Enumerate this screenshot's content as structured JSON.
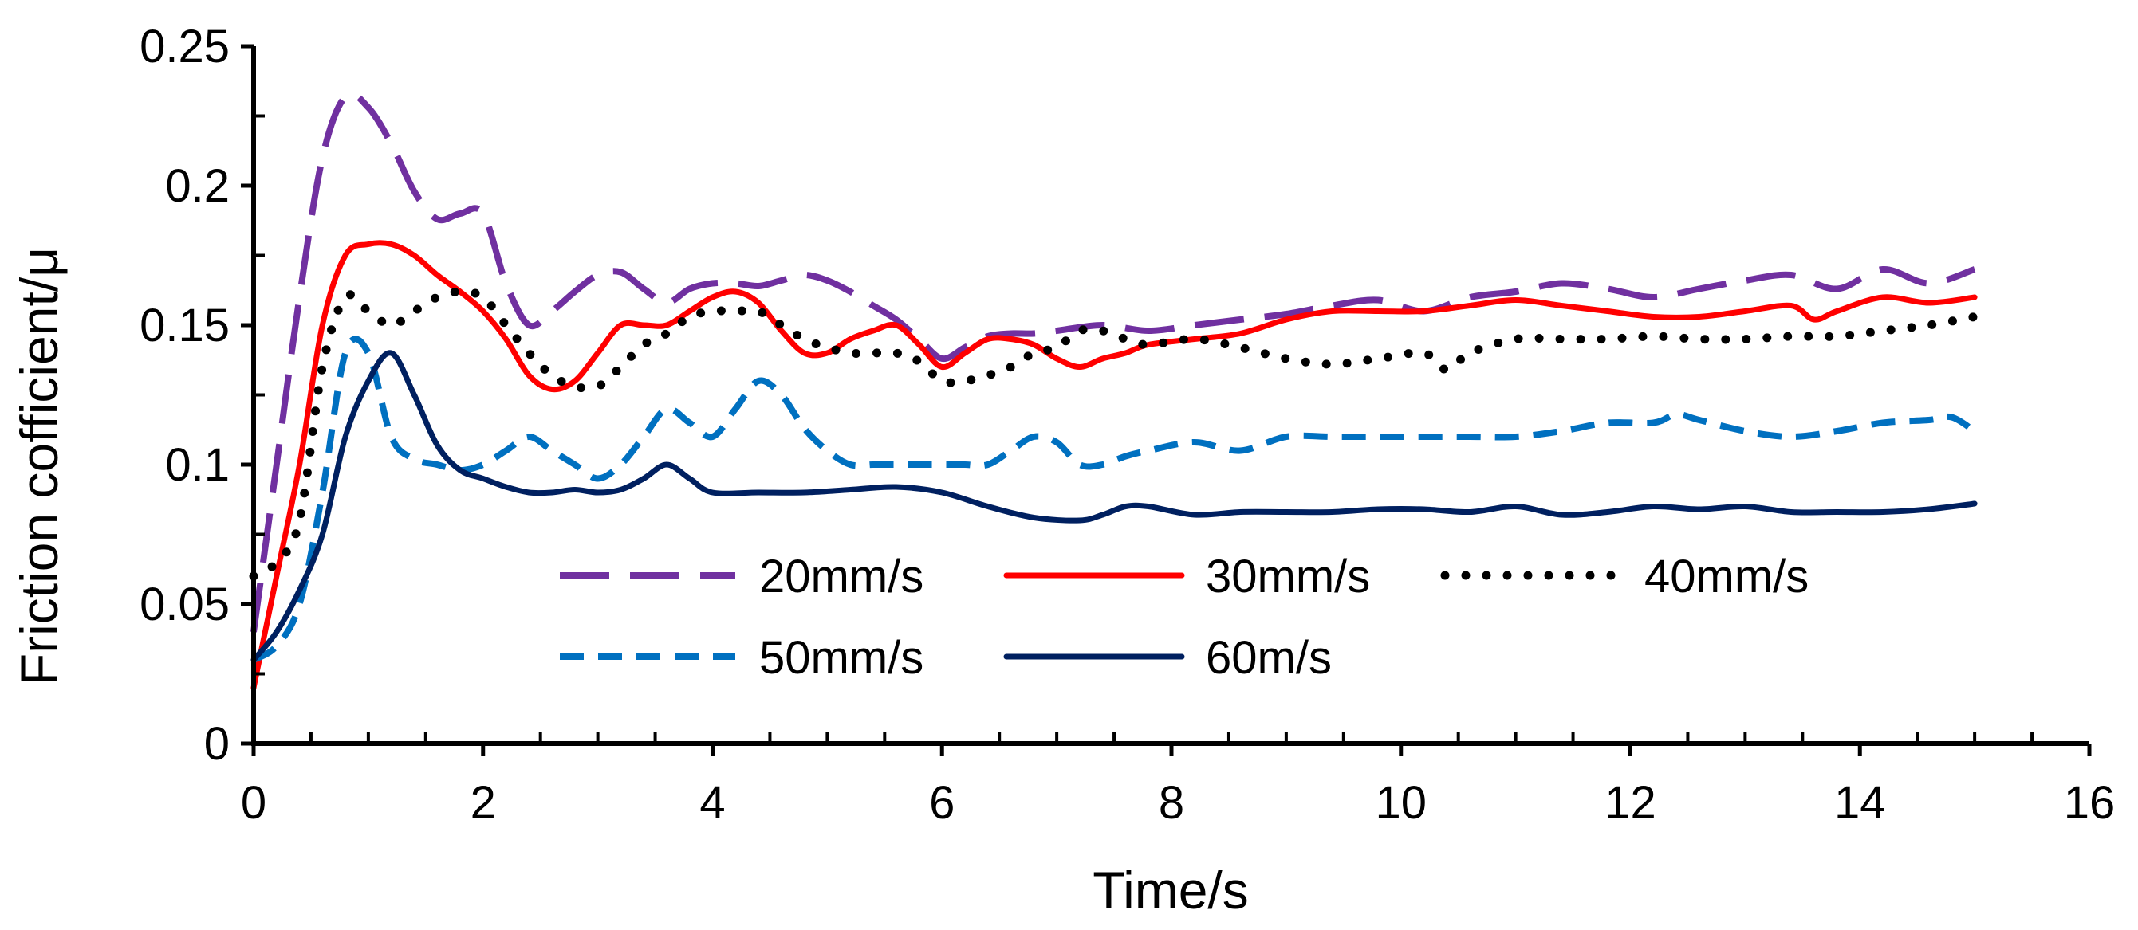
{
  "chart_data": {
    "type": "line",
    "title": "",
    "xlabel": "Time/s",
    "ylabel": "Friction cofficient/μ",
    "xlim": [
      0,
      16
    ],
    "ylim": [
      0,
      0.25
    ],
    "xticks": [
      0,
      2,
      4,
      6,
      8,
      10,
      12,
      14,
      16
    ],
    "yticks": [
      0,
      0.05,
      0.1,
      0.15,
      0.2,
      0.25
    ],
    "xtick_labels": [
      "0",
      "2",
      "4",
      "6",
      "8",
      "10",
      "12",
      "14",
      "16"
    ],
    "ytick_labels": [
      "0",
      "0.05",
      "0.1",
      "0.15",
      "0.2",
      "0.25"
    ],
    "grid": false,
    "legend_position": "bottom-center",
    "series": [
      {
        "name": "20mm/s",
        "color": "#7030A0",
        "style": "long-dash",
        "x": [
          0,
          0.2,
          0.4,
          0.6,
          0.8,
          1.0,
          1.2,
          1.4,
          1.6,
          1.8,
          2.0,
          2.2,
          2.4,
          2.6,
          2.8,
          3.0,
          3.2,
          3.4,
          3.6,
          3.8,
          4.0,
          4.2,
          4.4,
          4.6,
          4.8,
          5.0,
          5.2,
          5.4,
          5.6,
          5.8,
          6.0,
          6.2,
          6.4,
          6.6,
          6.8,
          7.0,
          7.4,
          7.8,
          8.2,
          8.6,
          9.0,
          9.4,
          9.8,
          10.2,
          10.6,
          11.0,
          11.4,
          11.8,
          12.2,
          12.6,
          13.0,
          13.4,
          13.8,
          14.2,
          14.6,
          15.0
        ],
        "values": [
          0.04,
          0.1,
          0.16,
          0.21,
          0.232,
          0.228,
          0.215,
          0.198,
          0.188,
          0.19,
          0.19,
          0.165,
          0.15,
          0.155,
          0.162,
          0.168,
          0.169,
          0.163,
          0.158,
          0.163,
          0.165,
          0.165,
          0.164,
          0.166,
          0.168,
          0.166,
          0.162,
          0.157,
          0.152,
          0.145,
          0.138,
          0.142,
          0.146,
          0.147,
          0.147,
          0.148,
          0.15,
          0.148,
          0.15,
          0.152,
          0.154,
          0.157,
          0.159,
          0.155,
          0.16,
          0.162,
          0.165,
          0.163,
          0.16,
          0.163,
          0.166,
          0.168,
          0.163,
          0.17,
          0.165,
          0.17
        ]
      },
      {
        "name": "30mm/s",
        "color": "#FF0000",
        "style": "solid",
        "x": [
          0,
          0.2,
          0.4,
          0.6,
          0.8,
          1.0,
          1.2,
          1.4,
          1.6,
          1.8,
          2.0,
          2.2,
          2.4,
          2.6,
          2.8,
          3.0,
          3.2,
          3.4,
          3.6,
          3.8,
          4.0,
          4.2,
          4.4,
          4.6,
          4.8,
          5.0,
          5.2,
          5.4,
          5.6,
          5.8,
          6.0,
          6.2,
          6.4,
          6.6,
          6.8,
          7.0,
          7.2,
          7.4,
          7.6,
          7.8,
          8.2,
          8.6,
          9.0,
          9.4,
          9.8,
          10.2,
          10.6,
          11.0,
          11.4,
          11.8,
          12.2,
          12.6,
          13.0,
          13.4,
          13.6,
          13.8,
          14.2,
          14.6,
          15.0
        ],
        "values": [
          0.02,
          0.06,
          0.1,
          0.15,
          0.175,
          0.179,
          0.179,
          0.175,
          0.168,
          0.162,
          0.155,
          0.145,
          0.132,
          0.127,
          0.13,
          0.14,
          0.15,
          0.15,
          0.15,
          0.155,
          0.16,
          0.162,
          0.158,
          0.148,
          0.14,
          0.14,
          0.145,
          0.148,
          0.15,
          0.143,
          0.135,
          0.14,
          0.145,
          0.145,
          0.143,
          0.138,
          0.135,
          0.138,
          0.14,
          0.143,
          0.145,
          0.147,
          0.152,
          0.155,
          0.155,
          0.155,
          0.157,
          0.159,
          0.157,
          0.155,
          0.153,
          0.153,
          0.155,
          0.157,
          0.152,
          0.155,
          0.16,
          0.158,
          0.16
        ]
      },
      {
        "name": "40mm/s",
        "color": "#000000",
        "style": "dotted",
        "x": [
          0,
          0.2,
          0.4,
          0.6,
          0.8,
          1.0,
          1.2,
          1.4,
          1.6,
          1.8,
          2.0,
          2.2,
          2.4,
          2.6,
          2.8,
          3.0,
          3.2,
          3.4,
          3.6,
          3.8,
          4.0,
          4.2,
          4.4,
          4.6,
          4.8,
          5.0,
          5.2,
          5.4,
          5.6,
          5.8,
          6.0,
          6.2,
          6.4,
          6.6,
          6.8,
          7.0,
          7.2,
          7.4,
          7.6,
          7.8,
          8.2,
          8.6,
          9.0,
          9.4,
          9.8,
          10.2,
          10.4,
          10.6,
          11.0,
          11.4,
          11.8,
          12.2,
          12.6,
          13.0,
          13.4,
          13.8,
          14.2,
          14.6,
          15.0
        ],
        "values": [
          0.06,
          0.065,
          0.08,
          0.135,
          0.16,
          0.155,
          0.15,
          0.155,
          0.16,
          0.162,
          0.16,
          0.15,
          0.14,
          0.132,
          0.128,
          0.128,
          0.135,
          0.143,
          0.147,
          0.153,
          0.155,
          0.155,
          0.155,
          0.15,
          0.145,
          0.142,
          0.14,
          0.14,
          0.14,
          0.137,
          0.13,
          0.13,
          0.132,
          0.135,
          0.14,
          0.142,
          0.148,
          0.148,
          0.145,
          0.143,
          0.145,
          0.142,
          0.138,
          0.136,
          0.138,
          0.14,
          0.134,
          0.14,
          0.145,
          0.145,
          0.145,
          0.146,
          0.145,
          0.145,
          0.146,
          0.146,
          0.148,
          0.15,
          0.153
        ]
      },
      {
        "name": "50mm/s",
        "color": "#0070C0",
        "style": "short-dash",
        "x": [
          0,
          0.2,
          0.4,
          0.6,
          0.8,
          1.0,
          1.2,
          1.4,
          1.6,
          1.8,
          2.0,
          2.2,
          2.4,
          2.6,
          2.8,
          3.0,
          3.2,
          3.4,
          3.6,
          3.8,
          4.0,
          4.2,
          4.4,
          4.6,
          4.8,
          5.0,
          5.2,
          5.4,
          5.6,
          5.8,
          6.0,
          6.2,
          6.4,
          6.6,
          6.8,
          7.0,
          7.2,
          7.4,
          7.6,
          7.8,
          8.2,
          8.6,
          9.0,
          9.4,
          9.8,
          10.2,
          10.6,
          11.0,
          11.4,
          11.8,
          12.2,
          12.4,
          12.6,
          13.0,
          13.4,
          13.8,
          14.2,
          14.6,
          14.8,
          15.0
        ],
        "values": [
          0.03,
          0.035,
          0.05,
          0.09,
          0.14,
          0.14,
          0.11,
          0.102,
          0.1,
          0.098,
          0.1,
          0.105,
          0.11,
          0.105,
          0.1,
          0.095,
          0.1,
          0.11,
          0.12,
          0.115,
          0.11,
          0.12,
          0.13,
          0.125,
          0.113,
          0.105,
          0.1,
          0.1,
          0.1,
          0.1,
          0.1,
          0.1,
          0.1,
          0.105,
          0.11,
          0.108,
          0.1,
          0.1,
          0.103,
          0.105,
          0.108,
          0.105,
          0.11,
          0.11,
          0.11,
          0.11,
          0.11,
          0.11,
          0.112,
          0.115,
          0.115,
          0.118,
          0.116,
          0.112,
          0.11,
          0.112,
          0.115,
          0.116,
          0.117,
          0.112
        ]
      },
      {
        "name": "60m/s",
        "color": "#002060",
        "style": "solid",
        "x": [
          0,
          0.2,
          0.4,
          0.6,
          0.8,
          1.0,
          1.2,
          1.4,
          1.6,
          1.8,
          2.0,
          2.2,
          2.4,
          2.6,
          2.8,
          3.0,
          3.2,
          3.4,
          3.6,
          3.8,
          4.0,
          4.4,
          4.8,
          5.2,
          5.6,
          6.0,
          6.4,
          6.8,
          7.2,
          7.4,
          7.6,
          7.8,
          8.2,
          8.6,
          9.0,
          9.4,
          9.8,
          10.2,
          10.6,
          11.0,
          11.4,
          11.8,
          12.2,
          12.6,
          13.0,
          13.4,
          13.8,
          14.2,
          14.6,
          15.0
        ],
        "values": [
          0.03,
          0.04,
          0.055,
          0.075,
          0.11,
          0.13,
          0.14,
          0.125,
          0.107,
          0.098,
          0.095,
          0.092,
          0.09,
          0.09,
          0.091,
          0.09,
          0.091,
          0.095,
          0.1,
          0.095,
          0.09,
          0.09,
          0.09,
          0.091,
          0.092,
          0.09,
          0.085,
          0.081,
          0.08,
          0.082,
          0.085,
          0.085,
          0.082,
          0.083,
          0.083,
          0.083,
          0.084,
          0.084,
          0.083,
          0.085,
          0.082,
          0.083,
          0.085,
          0.084,
          0.085,
          0.083,
          0.083,
          0.083,
          0.084,
          0.086
        ]
      }
    ],
    "legend_rows": [
      [
        "20mm/s",
        "30mm/s",
        "40mm/s"
      ],
      [
        "50mm/s",
        "60m/s"
      ]
    ]
  }
}
